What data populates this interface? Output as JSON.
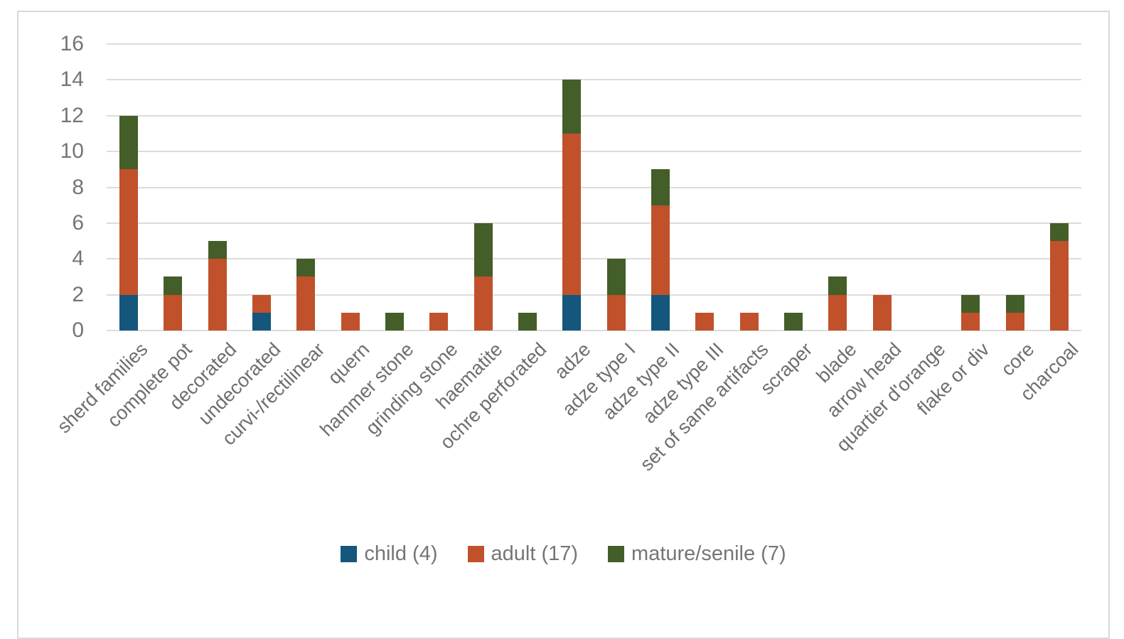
{
  "chart_data": {
    "type": "bar",
    "stacked": true,
    "title": "",
    "xlabel": "",
    "ylabel": "",
    "ylim": [
      0,
      16
    ],
    "yticks": [
      0,
      2,
      4,
      6,
      8,
      10,
      12,
      14,
      16
    ],
    "grid": true,
    "legend_position": "bottom",
    "categories": [
      "sherd families",
      "complete pot",
      "decorated",
      "undecorated",
      "curvi-/rectilinear",
      "quern",
      "hammer stone",
      "grinding stone",
      "haematite",
      "ochre perforated",
      "adze",
      "adze type I",
      "adze type II",
      "adze type III",
      "set of same artifacts",
      "scraper",
      "blade",
      "arrow head",
      "quartier d'orange",
      "flake or div",
      "core",
      "charcoal"
    ],
    "series": [
      {
        "name": "child (4)",
        "color": "#14567c",
        "values": [
          2,
          0,
          0,
          1,
          0,
          0,
          0,
          0,
          0,
          0,
          2,
          0,
          2,
          0,
          0,
          0,
          0,
          0,
          0,
          0,
          0,
          0
        ]
      },
      {
        "name": "adult (17)",
        "color": "#c0512b",
        "values": [
          7,
          2,
          4,
          1,
          3,
          1,
          0,
          1,
          3,
          0,
          9,
          2,
          5,
          1,
          1,
          0,
          2,
          2,
          0,
          1,
          1,
          5
        ]
      },
      {
        "name": "mature/senile (7)",
        "color": "#435e28",
        "values": [
          3,
          1,
          1,
          0,
          1,
          0,
          1,
          0,
          3,
          1,
          3,
          2,
          2,
          0,
          0,
          1,
          1,
          0,
          0,
          1,
          1,
          1
        ]
      }
    ]
  },
  "legend": {
    "items": [
      {
        "label": "child (4)",
        "color": "#14567c"
      },
      {
        "label": "adult (17)",
        "color": "#c0512b"
      },
      {
        "label": "mature/senile (7)",
        "color": "#435e28"
      }
    ]
  },
  "style_colors": {
    "gridline": "#dcdcdc",
    "frame_border": "#d9d9d9",
    "axis_text": "#757575"
  }
}
